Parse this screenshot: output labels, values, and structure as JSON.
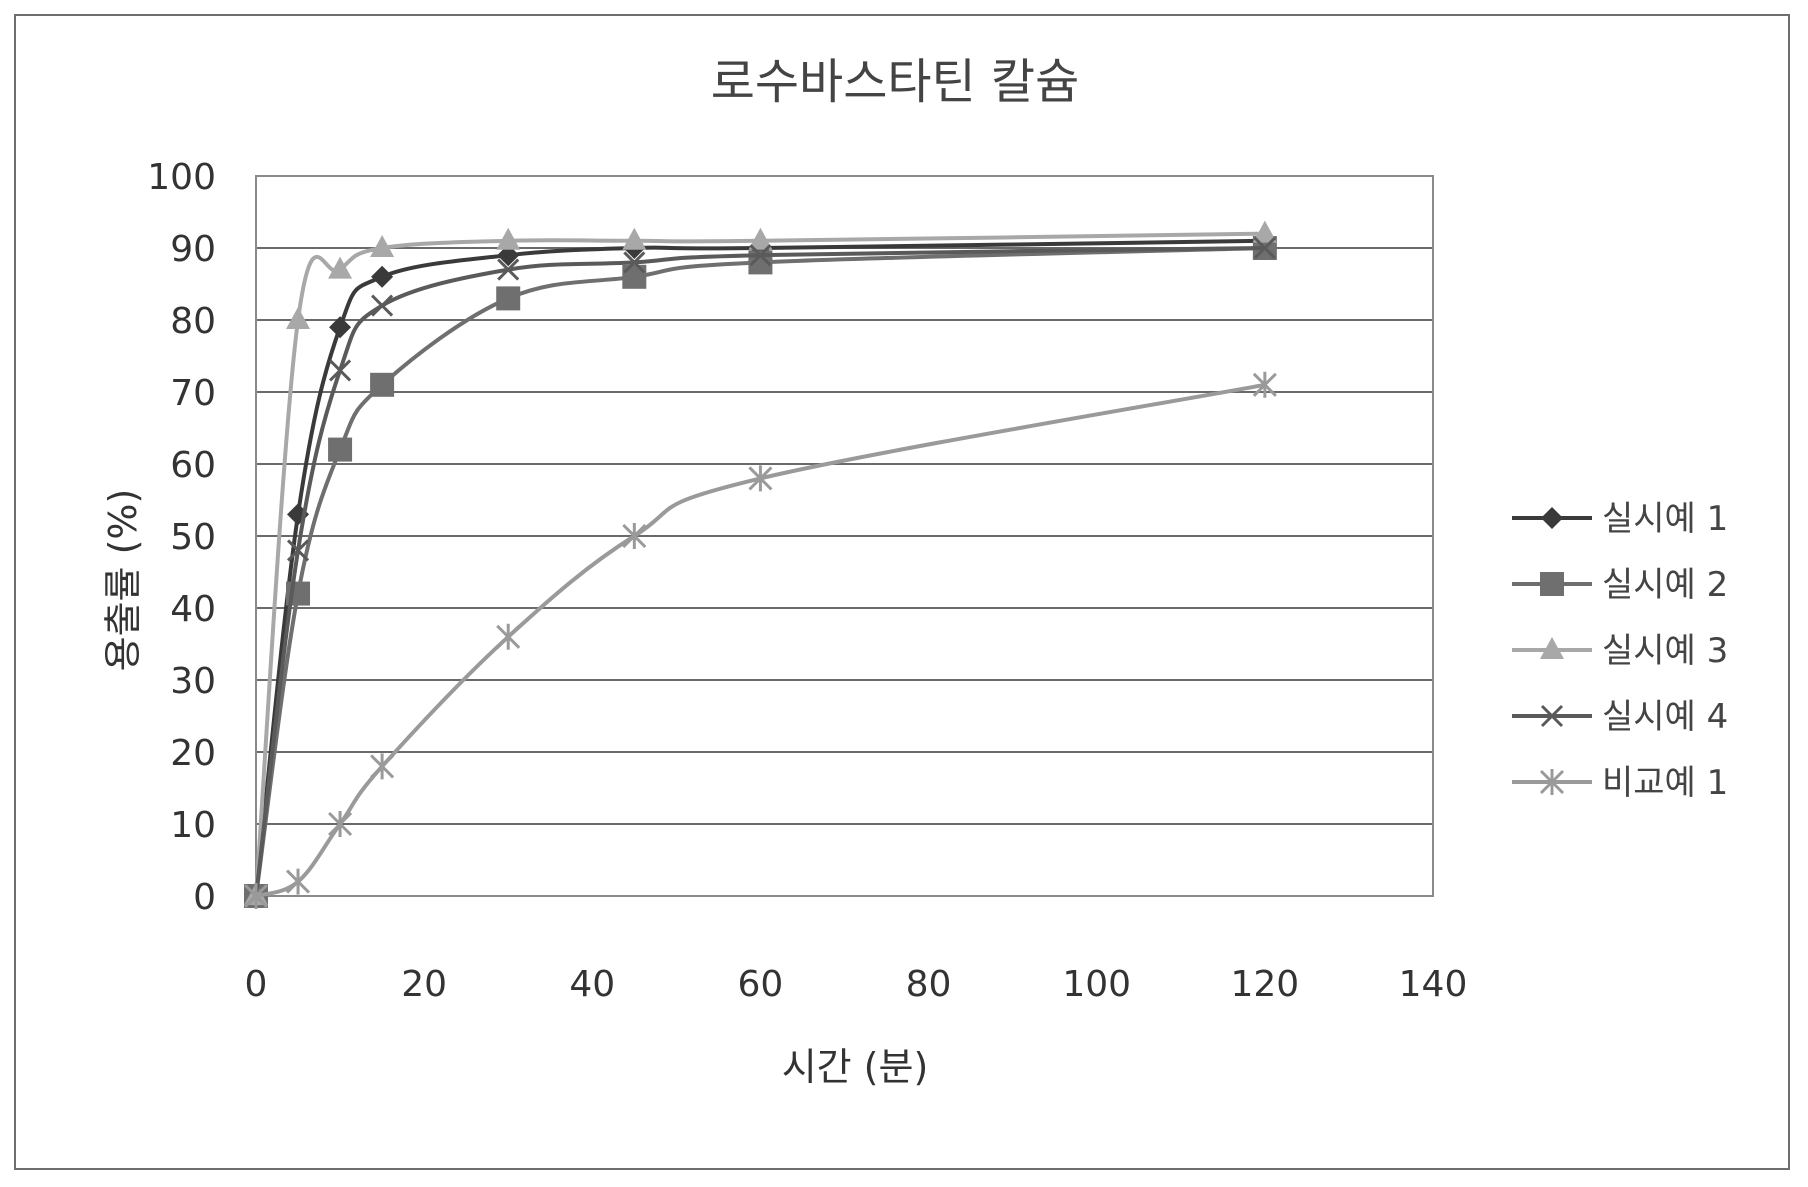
{
  "chart_data": {
    "type": "line",
    "title": "로수바스타틴 칼슘",
    "xlabel": "시간 (분)",
    "ylabel": "용출률 (%)",
    "xlim": [
      0,
      140
    ],
    "ylim": [
      0,
      100
    ],
    "x_ticks": [
      0,
      20,
      40,
      60,
      80,
      100,
      120,
      140
    ],
    "y_ticks": [
      0,
      10,
      20,
      30,
      40,
      50,
      60,
      70,
      80,
      90,
      100
    ],
    "grid": "horizontal",
    "legend_position": "right",
    "series": [
      {
        "name": "실시예 1",
        "color": "#3a3a3a",
        "marker": "diamond",
        "x": [
          0,
          5,
          10,
          15,
          30,
          45,
          60,
          120
        ],
        "y": [
          0,
          53,
          79,
          86,
          89,
          90,
          90,
          91
        ]
      },
      {
        "name": "실시예 2",
        "color": "#6f6f6f",
        "marker": "square",
        "x": [
          0,
          5,
          10,
          15,
          30,
          45,
          60,
          120
        ],
        "y": [
          0,
          42,
          62,
          71,
          83,
          86,
          88,
          90
        ]
      },
      {
        "name": "실시예 3",
        "color": "#a8a8a8",
        "marker": "triangle",
        "x": [
          0,
          5,
          10,
          15,
          30,
          45,
          60,
          120
        ],
        "y": [
          0,
          80,
          87,
          90,
          91,
          91,
          91,
          92
        ]
      },
      {
        "name": "실시예 4",
        "color": "#5a5a5a",
        "marker": "x",
        "x": [
          0,
          5,
          10,
          15,
          30,
          45,
          60,
          120
        ],
        "y": [
          0,
          48,
          73,
          82,
          87,
          88,
          89,
          90
        ]
      },
      {
        "name": "비교예 1",
        "color": "#9a9a9a",
        "marker": "star",
        "x": [
          0,
          5,
          10,
          15,
          30,
          45,
          60,
          120
        ],
        "y": [
          0,
          2,
          10,
          18,
          36,
          50,
          58,
          71
        ]
      }
    ]
  }
}
